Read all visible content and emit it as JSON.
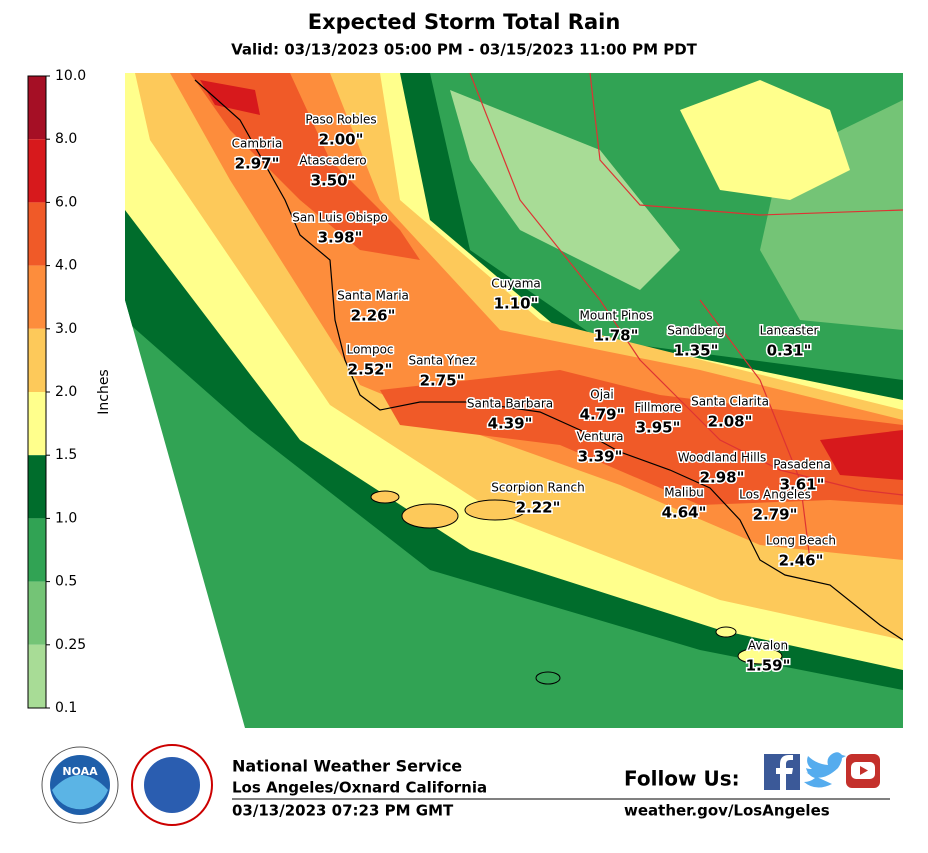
{
  "header": {
    "title": "Expected Storm Total Rain",
    "valid": "Valid: 03/13/2023 05:00 PM - 03/15/2023 11:00 PM PDT"
  },
  "legend": {
    "label": "Inches",
    "ticks": [
      "10.0",
      "8.0",
      "6.0",
      "4.0",
      "3.0",
      "2.0",
      "1.5",
      "1.0",
      "0.5",
      "0.25",
      "0.1"
    ],
    "colors": [
      "#a50f25",
      "#d7191c",
      "#f05a28",
      "#fd8d3c",
      "#fdc95a",
      "#ffff8c",
      "#006d2c",
      "#31a354",
      "#74c476",
      "#a8dc96"
    ]
  },
  "cities": [
    {
      "name": "Paso Robles",
      "amount": "2.00\""
    },
    {
      "name": "Cambria",
      "amount": "2.97\""
    },
    {
      "name": "Atascadero",
      "amount": "3.50\""
    },
    {
      "name": "San Luis Obispo",
      "amount": "3.98\""
    },
    {
      "name": "Cuyama",
      "amount": "1.10\""
    },
    {
      "name": "Santa Maria",
      "amount": "2.26\""
    },
    {
      "name": "Mount Pinos",
      "amount": "1.78\""
    },
    {
      "name": "Sandberg",
      "amount": "1.35\""
    },
    {
      "name": "Lancaster",
      "amount": "0.31\""
    },
    {
      "name": "Lompoc",
      "amount": "2.52\""
    },
    {
      "name": "Santa Ynez",
      "amount": "2.75\""
    },
    {
      "name": "Ojai",
      "amount": "4.79\""
    },
    {
      "name": "Santa Barbara",
      "amount": "4.39\""
    },
    {
      "name": "Fillmore",
      "amount": "3.95\""
    },
    {
      "name": "Santa Clarita",
      "amount": "2.08\""
    },
    {
      "name": "Ventura",
      "amount": "3.39\""
    },
    {
      "name": "Woodland Hills",
      "amount": "2.98\""
    },
    {
      "name": "Pasadena",
      "amount": "3.61\""
    },
    {
      "name": "Scorpion Ranch",
      "amount": "2.22\""
    },
    {
      "name": "Malibu",
      "amount": "4.64\""
    },
    {
      "name": "Los Angeles",
      "amount": "2.79\""
    },
    {
      "name": "Long Beach",
      "amount": "2.46\""
    },
    {
      "name": "Avalon",
      "amount": "1.59\""
    }
  ],
  "footer": {
    "agency": "National Weather Service",
    "office": "Los Angeles/Oxnard California",
    "timestamp": "03/13/2023 07:23 PM GMT",
    "follow": "Follow Us:",
    "url": "weather.gov/LosAngeles",
    "noaa": "NOAA"
  }
}
